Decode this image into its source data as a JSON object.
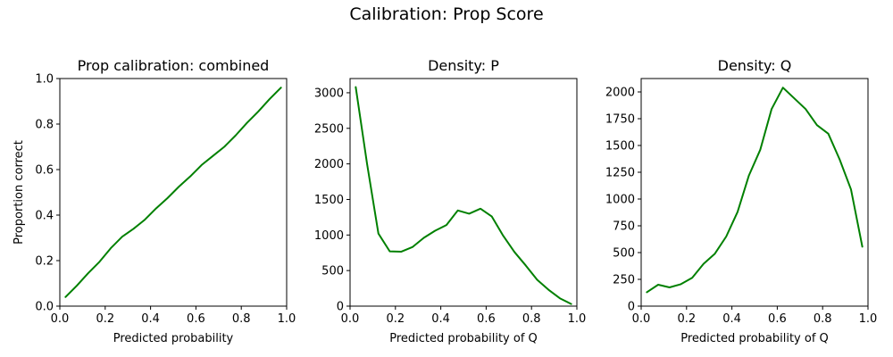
{
  "figure": {
    "suptitle": "Calibration: Prop Score",
    "line_color": "#008000"
  },
  "chart_data": [
    {
      "type": "line",
      "title": "Prop calibration: combined",
      "xlabel": "Predicted probability",
      "ylabel": "Proportion correct",
      "xlim": [
        0,
        1
      ],
      "ylim": [
        0,
        1
      ],
      "xticks": [
        0,
        0.2,
        0.4,
        0.6,
        0.8,
        1
      ],
      "xtick_labels": [
        "0.0",
        "0.2",
        "0.4",
        "0.6",
        "0.8",
        "1.0"
      ],
      "yticks": [
        0,
        0.2,
        0.4,
        0.6,
        0.8,
        1
      ],
      "ytick_labels": [
        "0.0",
        "0.2",
        "0.4",
        "0.6",
        "0.8",
        "1.0"
      ],
      "grid": false,
      "series": [
        {
          "color": "#008000",
          "x": [
            0.025,
            0.075,
            0.125,
            0.175,
            0.225,
            0.275,
            0.325,
            0.375,
            0.425,
            0.475,
            0.525,
            0.575,
            0.625,
            0.675,
            0.725,
            0.775,
            0.825,
            0.875,
            0.925,
            0.975
          ],
          "y": [
            0.04,
            0.09,
            0.145,
            0.195,
            0.255,
            0.305,
            0.34,
            0.38,
            0.43,
            0.475,
            0.525,
            0.57,
            0.62,
            0.66,
            0.7,
            0.75,
            0.805,
            0.855,
            0.91,
            0.96
          ]
        }
      ]
    },
    {
      "type": "line",
      "title": "Density: P",
      "xlabel": "Predicted probability of Q",
      "ylabel": "",
      "xlim": [
        0,
        1
      ],
      "ylim": [
        0,
        3200
      ],
      "xticks": [
        0,
        0.2,
        0.4,
        0.6,
        0.8,
        1
      ],
      "xtick_labels": [
        "0.0",
        "0.2",
        "0.4",
        "0.6",
        "0.8",
        "1.0"
      ],
      "yticks": [
        0,
        500,
        1000,
        1500,
        2000,
        2500,
        3000
      ],
      "ytick_labels": [
        "0",
        "500",
        "1000",
        "1500",
        "2000",
        "2500",
        "3000"
      ],
      "grid": false,
      "series": [
        {
          "color": "#008000",
          "x": [
            0.025,
            0.075,
            0.125,
            0.175,
            0.225,
            0.275,
            0.325,
            0.375,
            0.425,
            0.475,
            0.525,
            0.575,
            0.625,
            0.675,
            0.725,
            0.775,
            0.825,
            0.875,
            0.925,
            0.975
          ],
          "y": [
            3080,
            2000,
            1020,
            770,
            765,
            830,
            960,
            1060,
            1140,
            1345,
            1300,
            1370,
            1260,
            990,
            760,
            570,
            370,
            230,
            110,
            30
          ]
        }
      ]
    },
    {
      "type": "line",
      "title": "Density: Q",
      "xlabel": "Predicted probability of Q",
      "ylabel": "",
      "xlim": [
        0,
        1
      ],
      "ylim": [
        0,
        2125
      ],
      "xticks": [
        0,
        0.2,
        0.4,
        0.6,
        0.8,
        1
      ],
      "xtick_labels": [
        "0.0",
        "0.2",
        "0.4",
        "0.6",
        "0.8",
        "1.0"
      ],
      "yticks": [
        0,
        250,
        500,
        750,
        1000,
        1250,
        1500,
        1750,
        2000
      ],
      "ytick_labels": [
        "0",
        "250",
        "500",
        "750",
        "1000",
        "1250",
        "1500",
        "1750",
        "2000"
      ],
      "grid": false,
      "series": [
        {
          "color": "#008000",
          "x": [
            0.025,
            0.075,
            0.125,
            0.175,
            0.225,
            0.275,
            0.325,
            0.375,
            0.425,
            0.475,
            0.525,
            0.575,
            0.625,
            0.675,
            0.725,
            0.775,
            0.825,
            0.875,
            0.925,
            0.975
          ],
          "y": [
            130,
            200,
            175,
            205,
            265,
            395,
            490,
            650,
            880,
            1220,
            1460,
            1840,
            2040,
            1940,
            1840,
            1690,
            1610,
            1370,
            1090,
            555
          ]
        }
      ]
    }
  ]
}
